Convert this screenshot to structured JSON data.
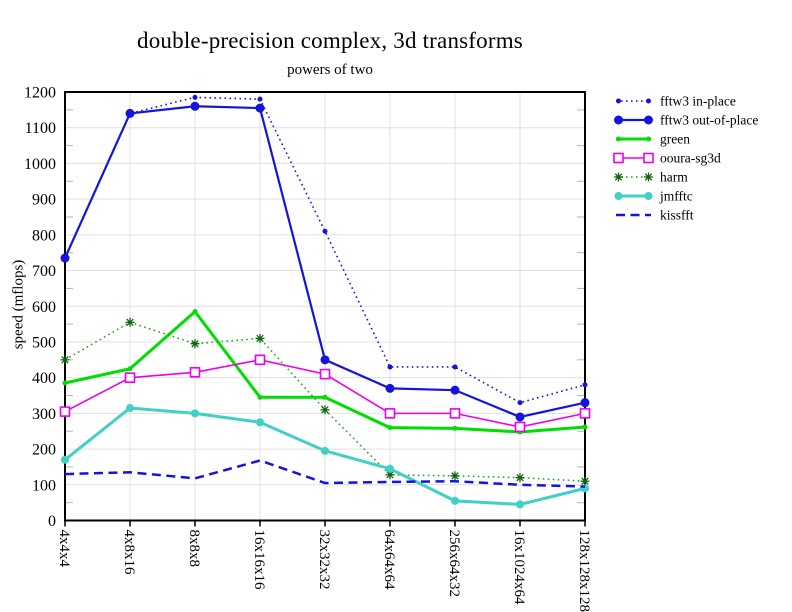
{
  "chart_data": {
    "type": "line",
    "title": "double-precision complex, 3d transforms",
    "subtitle": "powers of two",
    "ylabel": "speed (mflops)",
    "xlabel": "",
    "ylim": [
      0,
      1200
    ],
    "ytick_step": 100,
    "ytick_minor_step": 50,
    "grid": true,
    "legend_position": "outside-right-top",
    "colors": {
      "grid": "#e0e0e0",
      "frame": "#000000"
    },
    "categories": [
      "4x4x4",
      "4x8x16",
      "8x8x8",
      "16x16x16",
      "32x32x32",
      "64x64x64",
      "256x64x32",
      "16x1024x64",
      "128x128x128"
    ],
    "series": [
      {
        "name": "fftw3 in-place",
        "color": "#1414dd",
        "line": "dotted",
        "line_width": 1.6,
        "marker": "circle",
        "marker_size": 5,
        "values": [
          735,
          1140,
          1185,
          1180,
          810,
          430,
          430,
          330,
          380
        ]
      },
      {
        "name": "fftw3 out-of-place",
        "color": "#1414dd",
        "line": "solid",
        "line_width": 2.2,
        "marker": "circle",
        "marker_size": 9,
        "values": [
          735,
          1140,
          1160,
          1155,
          450,
          370,
          365,
          290,
          330
        ]
      },
      {
        "name": "green",
        "color": "#00dd00",
        "line": "solid",
        "line_width": 3,
        "marker": "circle",
        "marker_size": 5,
        "values": [
          385,
          425,
          585,
          345,
          345,
          260,
          258,
          248,
          262
        ]
      },
      {
        "name": "ooura-sg3d",
        "color": "#ee00ee",
        "line": "solid",
        "line_width": 1.6,
        "marker": "square-open",
        "marker_size": 9,
        "values": [
          305,
          400,
          415,
          450,
          410,
          300,
          300,
          262,
          300
        ]
      },
      {
        "name": "harm",
        "color": "#2aa02a",
        "marker_color": "#0d660d",
        "line": "dotted",
        "line_width": 1.6,
        "marker": "asterisk",
        "marker_size": 9,
        "values": [
          450,
          555,
          495,
          510,
          310,
          128,
          125,
          120,
          110
        ]
      },
      {
        "name": "jmfftc",
        "color": "#40d0c4",
        "line": "solid",
        "line_width": 3,
        "marker": "circle",
        "marker_size": 8,
        "values": [
          170,
          315,
          300,
          275,
          195,
          145,
          55,
          45,
          90
        ]
      },
      {
        "name": "kissfft",
        "color": "#1414dd",
        "line": "dashed",
        "line_width": 2.5,
        "marker": "none",
        "marker_size": 0,
        "values": [
          130,
          135,
          118,
          168,
          105,
          108,
          110,
          100,
          95
        ]
      }
    ]
  }
}
